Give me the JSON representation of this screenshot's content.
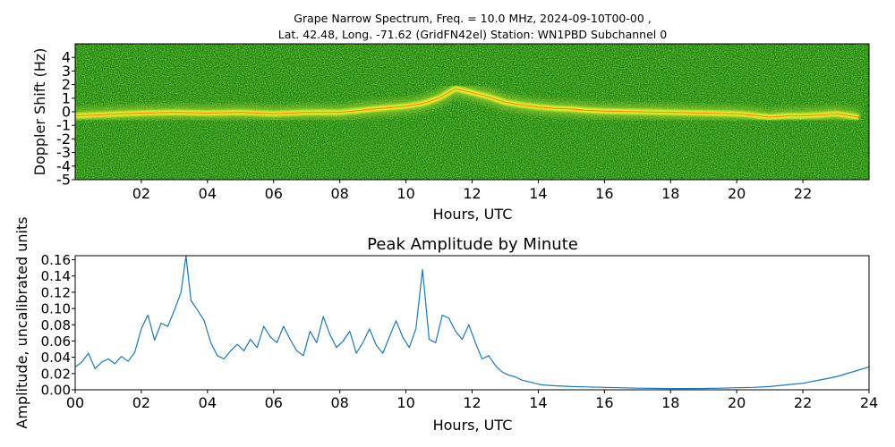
{
  "chart_data": [
    {
      "type": "heatmap",
      "title_line1": "Grape Narrow Spectrum, Freq. = 10.0 MHz, 2024-09-10T00-00 ,",
      "title_line2": "Lat.  42.48, Long. -71.62 (GridFN42el) Station: WN1PBD Subchannel 0",
      "xlabel": "Hours, UTC",
      "ylabel": "Doppler Shift (Hz)",
      "xlim": [
        0,
        24
      ],
      "ylim": [
        -5,
        5
      ],
      "x_ticks": [
        2,
        4,
        6,
        8,
        10,
        12,
        14,
        16,
        18,
        20,
        22
      ],
      "x_tick_labels": [
        "02",
        "04",
        "06",
        "08",
        "10",
        "12",
        "14",
        "16",
        "18",
        "20",
        "22"
      ],
      "y_ticks": [
        4,
        3,
        2,
        1,
        0,
        -1,
        -2,
        -3,
        -4,
        -5
      ],
      "y_tick_labels": [
        "4",
        "3",
        "2",
        "1",
        "0",
        "-1",
        "-2",
        "-3",
        "-4",
        "-5"
      ],
      "colors": {
        "background": "#0a7d0a",
        "mid": "#9acd32",
        "signal": "#ffff33",
        "peak": "#ff4500"
      },
      "doppler_trace": {
        "x": [
          0,
          1,
          2,
          3,
          4,
          5,
          6,
          7,
          8,
          9,
          10,
          10.5,
          11,
          11.5,
          12,
          12.5,
          13,
          13.5,
          14,
          14.5,
          15,
          15.5,
          16,
          17,
          18,
          19,
          20,
          20.5,
          21,
          21.5,
          22,
          22.5,
          23,
          23.7
        ],
        "y": [
          -0.3,
          -0.2,
          -0.1,
          -0.05,
          -0.1,
          -0.05,
          -0.15,
          -0.05,
          -0.05,
          0.2,
          0.4,
          0.6,
          1.0,
          1.7,
          1.4,
          1.1,
          0.7,
          0.5,
          0.35,
          0.25,
          0.2,
          0.1,
          0.05,
          0.0,
          -0.05,
          -0.1,
          -0.15,
          -0.25,
          -0.4,
          -0.3,
          -0.3,
          -0.25,
          -0.15,
          -0.4
        ]
      }
    },
    {
      "type": "line",
      "title": "Peak Amplitude by Minute",
      "xlabel": "Hours, UTC",
      "ylabel": "Amplitude, uncalibrated units",
      "xlim": [
        0,
        24
      ],
      "ylim": [
        0,
        0.165
      ],
      "x_ticks": [
        0,
        2,
        4,
        6,
        8,
        10,
        12,
        14,
        16,
        18,
        20,
        22,
        24
      ],
      "x_tick_labels": [
        "00",
        "02",
        "04",
        "06",
        "08",
        "10",
        "12",
        "14",
        "16",
        "18",
        "20",
        "22",
        "24"
      ],
      "y_ticks": [
        0,
        0.02,
        0.04,
        0.06,
        0.08,
        0.1,
        0.12,
        0.14,
        0.16
      ],
      "y_tick_labels": [
        "0.00",
        "0.02",
        "0.04",
        "0.06",
        "0.08",
        "0.10",
        "0.12",
        "0.14",
        "0.16"
      ],
      "series_color": "#1f77b4",
      "series": [
        {
          "x": [
            0,
            0.2,
            0.4,
            0.6,
            0.8,
            1.0,
            1.2,
            1.4,
            1.6,
            1.8,
            2.0,
            2.2,
            2.4,
            2.6,
            2.8,
            3.0,
            3.2,
            3.35,
            3.5,
            3.7,
            3.9,
            4.1,
            4.3,
            4.5,
            4.7,
            4.9,
            5.1,
            5.3,
            5.5,
            5.7,
            5.9,
            6.1,
            6.3,
            6.5,
            6.7,
            6.9,
            7.1,
            7.3,
            7.5,
            7.7,
            7.9,
            8.1,
            8.3,
            8.5,
            8.7,
            8.9,
            9.1,
            9.3,
            9.5,
            9.7,
            9.9,
            10.1,
            10.3,
            10.5,
            10.7,
            10.9,
            11.1,
            11.3,
            11.5,
            11.7,
            11.9,
            12.1,
            12.3,
            12.5,
            12.7,
            12.9,
            13.1,
            13.3,
            13.5,
            13.7,
            13.9,
            14.1,
            14.5,
            15.0,
            15.5,
            16.0,
            16.5,
            17.0,
            17.5,
            18.0,
            18.5,
            19.0,
            19.5,
            20.0,
            20.5,
            21.0,
            21.5,
            22.0,
            22.5,
            23.0,
            23.5,
            24.0
          ],
          "y": [
            0.028,
            0.034,
            0.045,
            0.026,
            0.034,
            0.038,
            0.032,
            0.041,
            0.035,
            0.046,
            0.075,
            0.092,
            0.061,
            0.082,
            0.078,
            0.098,
            0.12,
            0.165,
            0.11,
            0.098,
            0.085,
            0.058,
            0.042,
            0.038,
            0.048,
            0.056,
            0.048,
            0.062,
            0.052,
            0.078,
            0.065,
            0.058,
            0.078,
            0.062,
            0.048,
            0.042,
            0.072,
            0.058,
            0.09,
            0.068,
            0.052,
            0.06,
            0.072,
            0.045,
            0.058,
            0.075,
            0.055,
            0.045,
            0.065,
            0.085,
            0.065,
            0.052,
            0.075,
            0.148,
            0.062,
            0.058,
            0.092,
            0.088,
            0.072,
            0.062,
            0.08,
            0.058,
            0.038,
            0.042,
            0.03,
            0.022,
            0.018,
            0.016,
            0.012,
            0.01,
            0.008,
            0.006,
            0.005,
            0.004,
            0.0035,
            0.003,
            0.0025,
            0.002,
            0.0018,
            0.0015,
            0.0015,
            0.0016,
            0.002,
            0.0025,
            0.003,
            0.004,
            0.006,
            0.008,
            0.012,
            0.016,
            0.022,
            0.028
          ]
        }
      ]
    }
  ]
}
